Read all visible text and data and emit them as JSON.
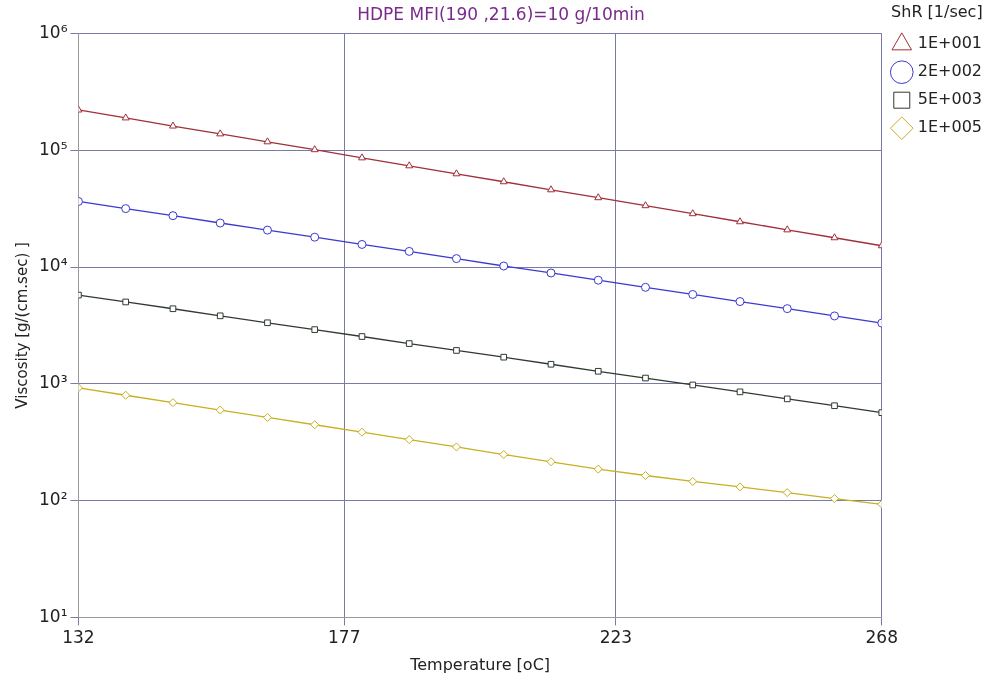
{
  "chart_data": {
    "type": "line",
    "title": "HDPE MFI(190 ,21.6)=10 g/10min",
    "xlabel": "Temperature [oC]",
    "ylabel": "Viscosity [g/(cm.sec) ]",
    "legend_title": "ShR [1/sec]",
    "x": [
      132,
      140,
      148,
      156,
      164,
      172,
      180,
      188,
      196,
      204,
      212,
      220,
      228,
      236,
      244,
      252,
      260,
      268
    ],
    "series": [
      {
        "name": "1E+001",
        "color": "#a0303a",
        "marker": "triangle",
        "values": [
          221000,
          189000,
          161000,
          138000,
          118000,
          101000,
          86000,
          73500,
          62800,
          53700,
          45800,
          39200,
          33500,
          28600,
          24400,
          20800,
          17800,
          15200
        ]
      },
      {
        "name": "2E+002",
        "color": "#3a3ad0",
        "marker": "circle",
        "values": [
          36400,
          31600,
          27500,
          23800,
          20700,
          18000,
          15600,
          13600,
          11800,
          10200,
          8890,
          7710,
          6700,
          5820,
          5060,
          4400,
          3810,
          3310
        ]
      },
      {
        "name": "5E+003",
        "color": "#303a30",
        "marker": "square",
        "values": [
          5750,
          5020,
          4390,
          3820,
          3330,
          2910,
          2540,
          2210,
          1930,
          1690,
          1470,
          1280,
          1120,
          977,
          853,
          743,
          649,
          566
        ]
      },
      {
        "name": "1E+005",
        "color": "#c8b020",
        "marker": "diamond",
        "values": [
          923,
          798,
          689,
          596,
          515,
          446,
          385,
          333,
          288,
          248,
          215,
          186,
          164,
          146,
          131,
          117,
          104,
          93
        ]
      }
    ],
    "xlim": [
      132,
      268
    ],
    "xticks": [
      132,
      177,
      223,
      268
    ],
    "log": "y",
    "ylim": [
      10,
      1000000
    ],
    "yticks": [
      {
        "value": 10,
        "label": "10¹"
      },
      {
        "value": 100,
        "label": "10²"
      },
      {
        "value": 1000,
        "label": "10³"
      },
      {
        "value": 10000,
        "label": "10⁴"
      },
      {
        "value": 100000,
        "label": "10⁵"
      },
      {
        "value": 1000000,
        "label": "10⁶"
      }
    ],
    "grid": true,
    "legend": "top right",
    "line_style": "solid"
  }
}
